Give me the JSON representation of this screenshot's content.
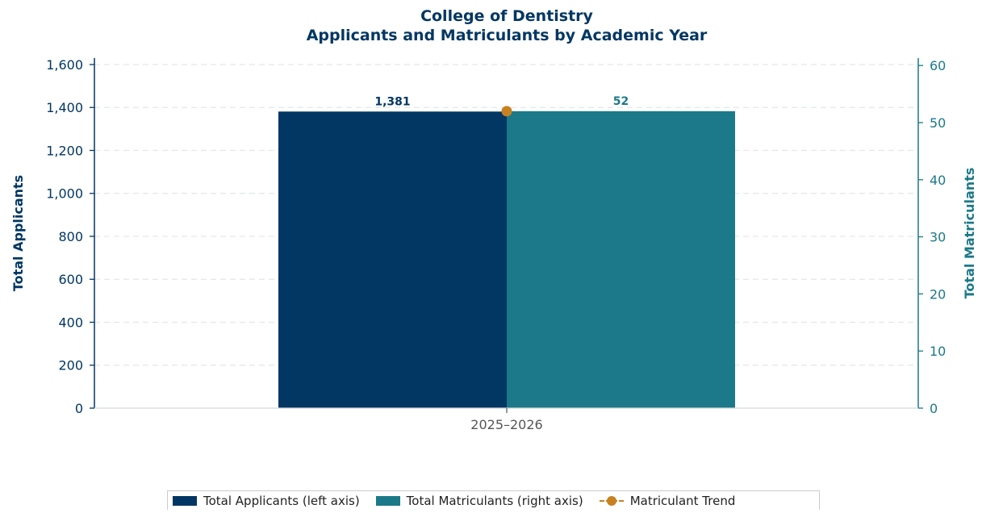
{
  "chart_data": {
    "type": "bar",
    "title_line1": "College of Dentistry",
    "title_line2": "Applicants and Matriculants by Academic Year",
    "categories": [
      "2025–2026"
    ],
    "series": [
      {
        "name": "Total Applicants (left axis)",
        "axis": "left",
        "values": [
          1381
        ],
        "color": "#023763",
        "label": "1,381"
      },
      {
        "name": "Total Matriculants (right axis)",
        "axis": "right",
        "values": [
          52
        ],
        "color": "#1b798a",
        "label": "52"
      },
      {
        "name": "Matriculant Trend",
        "axis": "right",
        "type": "line",
        "values": [
          52
        ],
        "color": "#c8811f"
      }
    ],
    "ylabel_left": "Total Applicants",
    "ylabel_right": "Total Matriculants",
    "ylim_left": [
      0,
      1630
    ],
    "ylim_right": [
      0,
      61.3
    ],
    "yticks_left": [
      0,
      200,
      400,
      600,
      800,
      1000,
      1200,
      1400,
      1600
    ],
    "yticks_left_labels": [
      "0",
      "200",
      "400",
      "600",
      "800",
      "1,000",
      "1,200",
      "1,400",
      "1,600"
    ],
    "yticks_right": [
      0,
      10,
      20,
      30,
      40,
      50,
      60
    ],
    "yticks_right_labels": [
      "0",
      "10",
      "20",
      "30",
      "40",
      "50",
      "60"
    ],
    "grid": true,
    "legend_position": "bottom",
    "colors": {
      "title": "#023763",
      "left_axis": "#023763",
      "right_axis": "#1b798a",
      "trend": "#c8811f"
    }
  }
}
